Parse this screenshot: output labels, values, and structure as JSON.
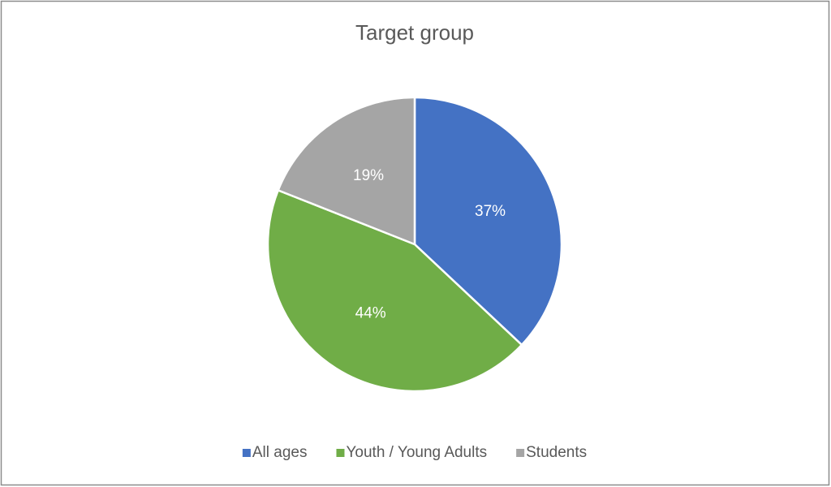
{
  "chart_data": {
    "type": "pie",
    "title": "Target group",
    "categories": [
      "All ages",
      "Youth / Young Adults",
      "Students"
    ],
    "values": [
      37,
      44,
      19
    ],
    "value_labels": [
      "37%",
      "44%",
      "19%"
    ],
    "colors": [
      "#4472c4",
      "#70ad47",
      "#a5a5a5"
    ],
    "legend": "bottom"
  }
}
